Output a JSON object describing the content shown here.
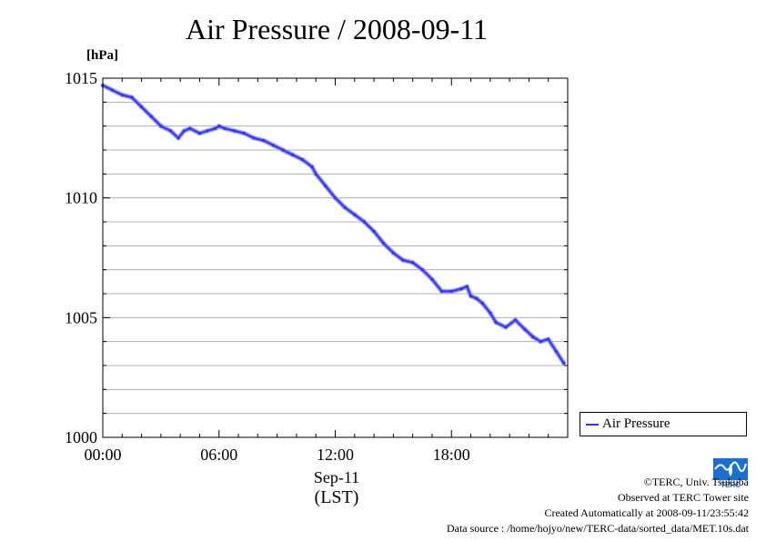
{
  "chart_data": {
    "type": "line",
    "title": "Air Pressure / 2008-09-11",
    "ylabel": "[hPa]",
    "xlabel_date": "Sep-11",
    "xlabel_unit": "(LST)",
    "ylim": [
      1000,
      1015
    ],
    "xlim": [
      0,
      24
    ],
    "y_ticks": [
      1000,
      1005,
      1010,
      1015
    ],
    "x_ticks": [
      {
        "value": 0,
        "label": "00:00"
      },
      {
        "value": 6,
        "label": "06:00"
      },
      {
        "value": 12,
        "label": "12:00"
      },
      {
        "value": 18,
        "label": "18:00"
      }
    ],
    "grid": true,
    "legend_position": "bottom-right, outside plot",
    "series": [
      {
        "name": "Air Pressure",
        "color": "#3333ff",
        "x": [
          0.0,
          0.5,
          1.0,
          1.5,
          2.0,
          2.5,
          3.0,
          3.5,
          3.9,
          4.2,
          4.5,
          5.0,
          5.4,
          5.8,
          6.0,
          6.3,
          6.8,
          7.3,
          7.8,
          8.3,
          8.8,
          9.3,
          9.8,
          10.3,
          10.8,
          11.0,
          11.5,
          12.0,
          12.5,
          13.0,
          13.5,
          14.0,
          14.5,
          15.0,
          15.5,
          16.0,
          16.5,
          17.0,
          17.5,
          18.0,
          18.5,
          18.8,
          19.0,
          19.3,
          19.6,
          20.0,
          20.3,
          20.8,
          21.3,
          21.8,
          22.2,
          22.6,
          23.0,
          23.4,
          23.8
        ],
        "y": [
          1014.7,
          1014.5,
          1014.3,
          1014.2,
          1013.8,
          1013.4,
          1013.0,
          1012.8,
          1012.5,
          1012.8,
          1012.9,
          1012.7,
          1012.8,
          1012.9,
          1013.0,
          1012.9,
          1012.8,
          1012.7,
          1012.5,
          1012.4,
          1012.2,
          1012.0,
          1011.8,
          1011.6,
          1011.3,
          1011.0,
          1010.5,
          1010.0,
          1009.6,
          1009.3,
          1009.0,
          1008.6,
          1008.1,
          1007.7,
          1007.4,
          1007.3,
          1007.0,
          1006.6,
          1006.1,
          1006.1,
          1006.2,
          1006.3,
          1005.9,
          1005.8,
          1005.6,
          1005.2,
          1004.8,
          1004.6,
          1004.9,
          1004.5,
          1004.2,
          1004.0,
          1004.1,
          1003.6,
          1003.1
        ]
      }
    ]
  },
  "footer": {
    "copyright": "©TERC, Univ. Tsukuba",
    "observed": "Observed at TERC Tower site",
    "created": "Created Automatically at 2008-09-11/23:55:42",
    "source": "Data source : /home/hojyo/new/TERC-data/sorted_data/MET.10s.dat"
  },
  "logo": {
    "icon": "terc-logo-icon",
    "text": "TERC",
    "color": "#1a6fd1"
  }
}
